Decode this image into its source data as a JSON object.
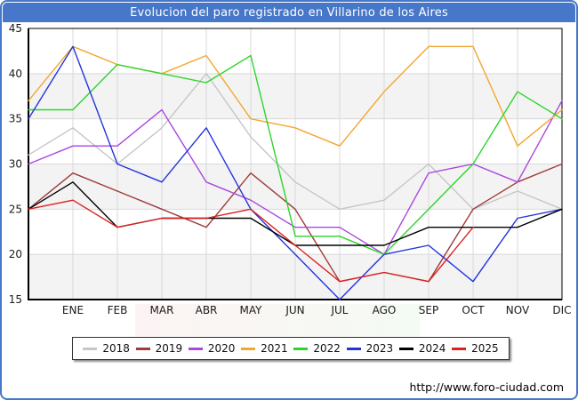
{
  "header": {
    "title": "Evolucion del paro registrado en Villarino de los Aires",
    "bg_color": "#4677c8",
    "text_color": "#ffffff"
  },
  "window": {
    "border_color": "#4677c8",
    "background": "#ffffff"
  },
  "footer": {
    "url": "http://www.foro-ciudad.com"
  },
  "chart_data": {
    "type": "line",
    "title": "Evolucion del paro registrado en Villarino de los Aires",
    "x_labels": [
      "ENE",
      "FEB",
      "MAR",
      "ABR",
      "MAY",
      "JUN",
      "JUL",
      "AGO",
      "SEP",
      "OCT",
      "NOV",
      "DIC"
    ],
    "ylim": [
      15,
      45
    ],
    "y_ticks": [
      15,
      20,
      25,
      30,
      35,
      40,
      45
    ],
    "grid": true,
    "legend_position": "bottom",
    "band_color": "#f3f3f3",
    "grid_color": "#d9d9d9",
    "axis_color": "#000000",
    "tick_label_color": "#1a1a1a",
    "series": [
      {
        "name": "2018",
        "color": "#c6c6c6",
        "lead_in": 31,
        "values": [
          34,
          30,
          34,
          40,
          33,
          28,
          25,
          26,
          30,
          25,
          27,
          25
        ]
      },
      {
        "name": "2019",
        "color": "#9e3b3b",
        "lead_in": 25,
        "values": [
          29,
          27,
          25,
          23,
          29,
          25,
          17,
          18,
          17,
          25,
          28,
          30
        ]
      },
      {
        "name": "2020",
        "color": "#ab47e0",
        "lead_in": 30,
        "values": [
          32,
          32,
          36,
          28,
          26,
          23,
          23,
          20,
          29,
          30,
          28,
          37
        ]
      },
      {
        "name": "2021",
        "color": "#f2a72e",
        "lead_in": 37,
        "values": [
          43,
          41,
          40,
          42,
          35,
          34,
          32,
          38,
          43,
          43,
          32,
          36
        ]
      },
      {
        "name": "2022",
        "color": "#2bd62b",
        "lead_in": 36,
        "values": [
          36,
          41,
          40,
          39,
          42,
          22,
          22,
          20,
          25,
          30,
          38,
          35
        ]
      },
      {
        "name": "2023",
        "color": "#2433dd",
        "lead_in": 35,
        "values": [
          43,
          30,
          28,
          34,
          25,
          20,
          15,
          20,
          21,
          17,
          24,
          25
        ]
      },
      {
        "name": "2024",
        "color": "#000000",
        "lead_in": 25,
        "values": [
          28,
          23,
          24,
          24,
          24,
          21,
          21,
          21,
          23,
          23,
          23,
          25
        ]
      },
      {
        "name": "2025",
        "color": "#dd2121",
        "lead_in": 25,
        "values": [
          26,
          23,
          24,
          24,
          25,
          21,
          17,
          18,
          17,
          23,
          null,
          null
        ]
      }
    ]
  }
}
